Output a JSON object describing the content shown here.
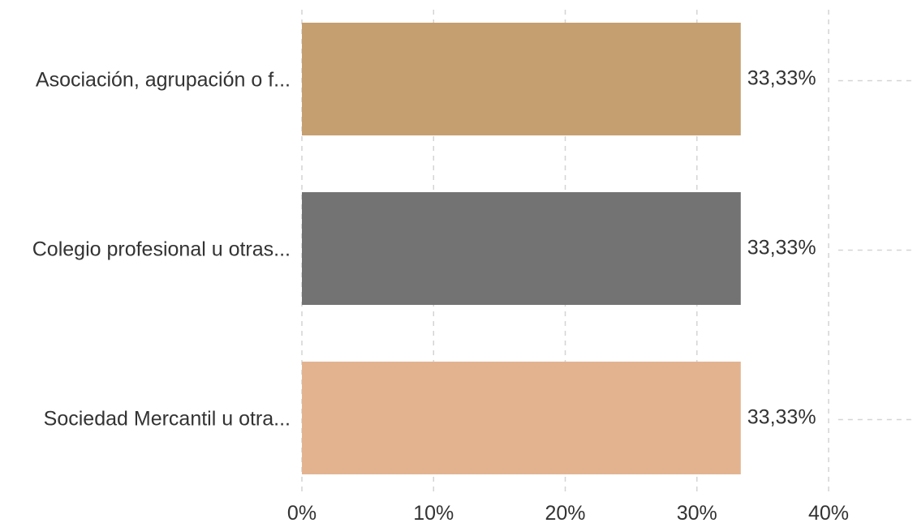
{
  "chart_data": {
    "type": "bar",
    "orientation": "horizontal",
    "categories": [
      "Asociación, agrupación o f...",
      "Colegio profesional u otras...",
      "Sociedad Mercantil u otra..."
    ],
    "values": [
      33.33,
      33.33,
      33.33
    ],
    "value_labels": [
      "33,33%",
      "33,33%",
      "33,33%"
    ],
    "colors": [
      "#c59f70",
      "#737373",
      "#e3b390"
    ],
    "x_ticks": [
      "0%",
      "10%",
      "20%",
      "30%",
      "40%"
    ],
    "xlim": [
      0,
      40
    ],
    "grid": true,
    "title": "",
    "xlabel": "",
    "ylabel": ""
  }
}
